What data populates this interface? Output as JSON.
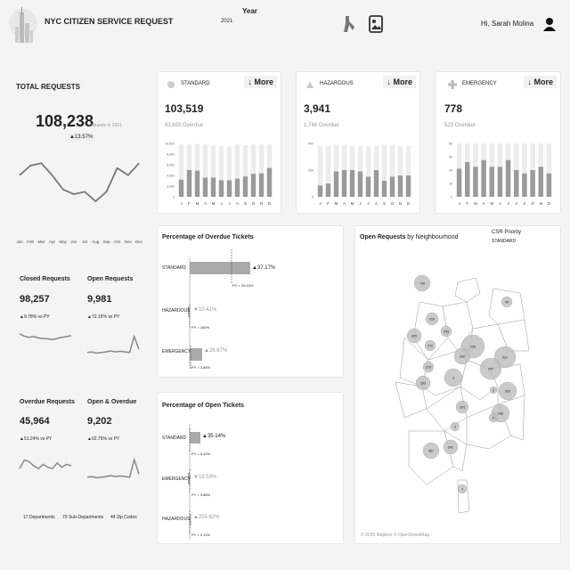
{
  "header": {
    "title": "NYC CITIZEN SERVICE REQUEST",
    "year_label": "Year",
    "year_value": "2021",
    "greeting": "Hi, Sarah Molina"
  },
  "icons": {
    "logo": "skyline-logo",
    "tool": "tools-icon",
    "image": "image-icon",
    "user": "user-icon",
    "standard": "circle-icon",
    "hazardous": "hazard-icon",
    "emergency": "cross-icon"
  },
  "total": {
    "title": "TOTAL REQUESTS",
    "value": "108,238",
    "suffix": "requests in 2021",
    "delta": "▲13.57%"
  },
  "months": [
    "Jan",
    "Feb",
    "Mar",
    "Apr",
    "May",
    "Jun",
    "Jul",
    "Aug",
    "Sep",
    "Oct",
    "Nov",
    "Dec"
  ],
  "month_letters": [
    "J",
    "F",
    "M",
    "A",
    "M",
    "J",
    "J",
    "A",
    "S",
    "O",
    "N",
    "D"
  ],
  "kpis": [
    {
      "label": "STANDARD",
      "value": "103,519",
      "overdue": "43,693 Overdue",
      "more": "↓ More"
    },
    {
      "label": "HAZARDOUS",
      "value": "3,941",
      "overdue": "1,748 Overdue",
      "more": "↓ More"
    },
    {
      "label": "EMERGENCY",
      "value": "778",
      "overdue": "523 Overdue",
      "more": "↓ More"
    }
  ],
  "mini": [
    {
      "label": "Closed Requests",
      "value": "98,257",
      "delta": "▲9.78%",
      "vs": "vs PY"
    },
    {
      "label": "Open Requests",
      "value": "9,981",
      "delta": "▲72.15%",
      "vs": "vs PY"
    },
    {
      "label": "Overdue Requests",
      "value": "45,964",
      "delta": "▲51.24%",
      "vs": "vs PY"
    },
    {
      "label": "Open & Overdue",
      "value": "9,202",
      "delta": "▲62.75%",
      "vs": "vs PY"
    }
  ],
  "footer": {
    "departments": "17 Departments",
    "subdepartments": "79 Sub-Departments",
    "zip": "44 Zip Codes"
  },
  "overdue_pct": {
    "title": "Percentage of Overdue Tickets",
    "rows": [
      {
        "label": "STANDARD",
        "value": "▲37.17%",
        "py": "PY = 29.43%"
      },
      {
        "label": "HAZARDOUS",
        "value": "▼10.41%",
        "py": "PY = 100%"
      },
      {
        "label": "EMERGENCY",
        "value": "▲26.67%",
        "py": "PY = 3.86%"
      }
    ]
  },
  "open_pct": {
    "title": "Percentage of Open Tickets",
    "rows": [
      {
        "label": "STANDARD",
        "value": "▲35.14%",
        "py": "PY = 0.42%"
      },
      {
        "label": "EMERGENCY",
        "value": "▼19.59%",
        "py": "PY = 3.58%"
      },
      {
        "label": "HAZARDOUS",
        "value": "▲255.62%",
        "py": "PY = 0.11%"
      }
    ]
  },
  "map": {
    "title_bold": "Open Requests",
    "title_rest": " by Neighbourhood",
    "legend_title": "CSR Priority",
    "legend_value": "STANDARD",
    "credit": "© 2025 Mapbox © OpenStreetMap",
    "bubble_labels": [
      "739",
      "40",
      "229",
      "343",
      "325",
      "272",
      "225",
      "521",
      "290",
      "275",
      "247",
      "3",
      "2",
      "353",
      "333",
      "283",
      "291",
      "457",
      "242",
      "2",
      "2",
      "1"
    ]
  },
  "chart_data": [
    {
      "type": "line",
      "name": "total_requests",
      "categories": [
        "Jan",
        "Feb",
        "Mar",
        "Apr",
        "May",
        "Jun",
        "Jul",
        "Aug",
        "Sep",
        "Oct",
        "Nov",
        "Dec"
      ],
      "values": [
        9000,
        9400,
        9500,
        9000,
        8400,
        8200,
        8300,
        7900,
        8300,
        9300,
        9000,
        9500
      ]
    },
    {
      "type": "bar",
      "name": "standard",
      "categories": [
        "J",
        "F",
        "M",
        "A",
        "M",
        "J",
        "J",
        "A",
        "S",
        "O",
        "N",
        "D"
      ],
      "ylim": [
        0,
        10000
      ],
      "yticks": [
        "10,000",
        "8,000",
        "6,000",
        "4,000",
        "2,000",
        "0"
      ],
      "series": [
        {
          "values": [
            9800,
            9800,
            9900,
            9800,
            9600,
            9500,
            9400,
            9800,
            9700,
            9800,
            9800,
            9800
          ]
        },
        {
          "values": [
            3200,
            5000,
            4900,
            3600,
            3600,
            3100,
            3100,
            3400,
            3800,
            4300,
            4400,
            5400
          ]
        }
      ]
    },
    {
      "type": "bar",
      "name": "hazardous",
      "categories": [
        "J",
        "F",
        "M",
        "A",
        "M",
        "J",
        "J",
        "A",
        "S",
        "O",
        "N",
        "D"
      ],
      "ylim": [
        0,
        400
      ],
      "yticks": [
        "400",
        "200",
        "0"
      ],
      "series": [
        {
          "values": [
            380,
            380,
            390,
            390,
            380,
            380,
            380,
            380,
            390,
            390,
            380,
            380
          ]
        },
        {
          "values": [
            85,
            100,
            190,
            200,
            200,
            190,
            150,
            200,
            120,
            150,
            160,
            160
          ]
        }
      ]
    },
    {
      "type": "bar",
      "name": "emergency",
      "categories": [
        "J",
        "F",
        "M",
        "A",
        "M",
        "J",
        "J",
        "A",
        "S",
        "O",
        "N",
        "D"
      ],
      "ylim": [
        0,
        80
      ],
      "yticks": [
        "80",
        "60",
        "40",
        "20",
        "0"
      ],
      "series": [
        {
          "values": [
            80,
            80,
            80,
            80,
            80,
            80,
            80,
            80,
            80,
            80,
            80,
            80
          ]
        },
        {
          "values": [
            42,
            52,
            45,
            55,
            45,
            45,
            55,
            40,
            35,
            40,
            45,
            35
          ]
        }
      ]
    },
    {
      "type": "line",
      "name": "closed_requests",
      "values": [
        70,
        60,
        55,
        58,
        52,
        50,
        48,
        45,
        50,
        55,
        58,
        62
      ]
    },
    {
      "type": "line",
      "name": "open_requests",
      "values": [
        20,
        22,
        18,
        20,
        22,
        25,
        22,
        24,
        22,
        20,
        70,
        30
      ]
    },
    {
      "type": "line",
      "name": "overdue_requests",
      "values": [
        40,
        70,
        65,
        50,
        40,
        55,
        45,
        40,
        60,
        45,
        55,
        50
      ]
    },
    {
      "type": "line",
      "name": "open_overdue",
      "values": [
        20,
        22,
        18,
        20,
        22,
        25,
        22,
        24,
        22,
        20,
        75,
        30
      ]
    },
    {
      "type": "bar",
      "name": "overdue_pct",
      "categories": [
        "STANDARD",
        "HAZARDOUS",
        "EMERGENCY"
      ],
      "values": [
        37.17,
        -10.41,
        26.67
      ]
    },
    {
      "type": "bar",
      "name": "open_pct",
      "categories": [
        "STANDARD",
        "EMERGENCY",
        "HAZARDOUS"
      ],
      "values": [
        35.14,
        -19.59,
        255.62
      ]
    }
  ]
}
